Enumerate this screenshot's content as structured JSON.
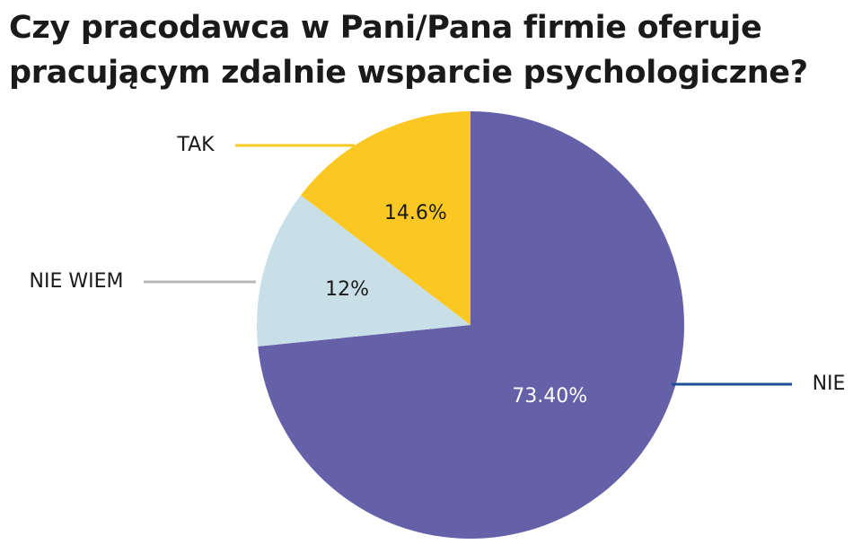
{
  "chart_data": {
    "type": "pie",
    "title": "Czy pracodawca w Pani/Pana firmie oferuje pracującym zdalnie wsparcie psychologiczne?",
    "categories": [
      "NIE",
      "NIE WIEM",
      "TAK"
    ],
    "values": [
      73.4,
      12,
      14.6
    ],
    "value_labels": [
      "73.40%",
      "12%",
      "14.6%"
    ],
    "colors": [
      "#6461a9",
      "#c9dfe8",
      "#fbc823"
    ],
    "leader_colors": [
      "#1f4e96",
      "#b8b8b8",
      "#fbc823"
    ]
  }
}
